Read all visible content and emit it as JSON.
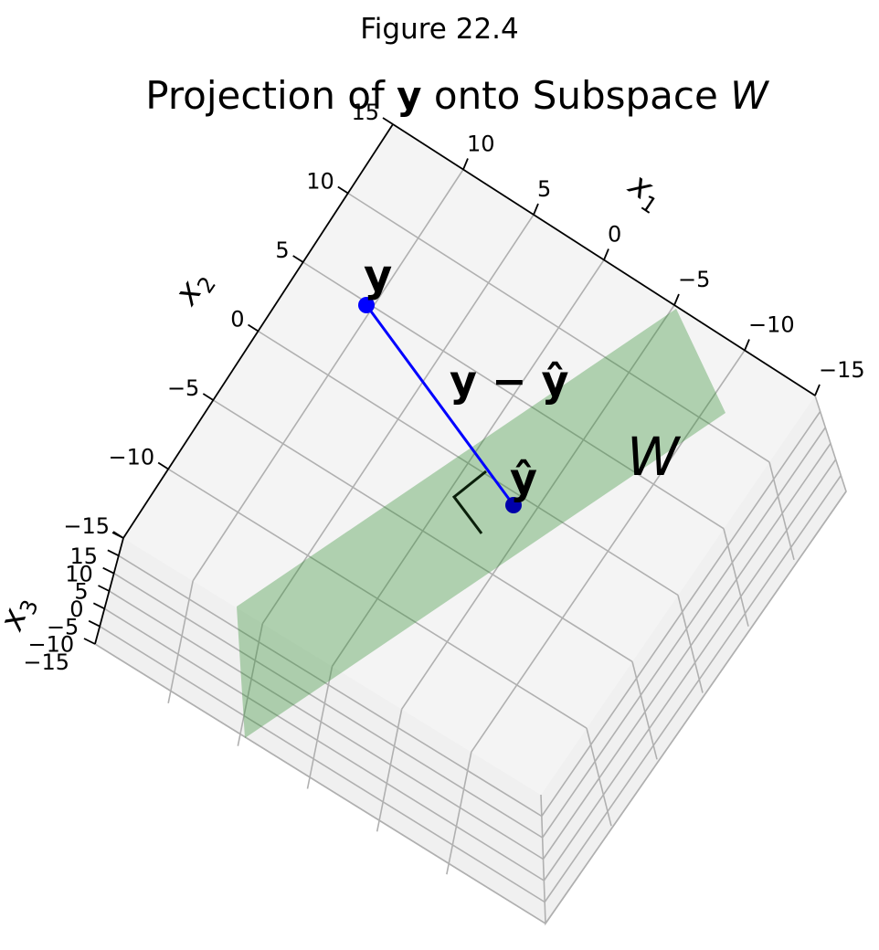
{
  "figure_label": "Figure 22.4",
  "title": {
    "prefix": "Projection of ",
    "vector": "y",
    "middle": " onto Subspace ",
    "subspace": "W"
  },
  "chart_data": {
    "type": "3d-projection",
    "axes": [
      {
        "name": "x1",
        "label_text": "x",
        "label_sub": "1",
        "range": [
          -15,
          15
        ],
        "ticks": [
          -15,
          -10,
          -5,
          0,
          5,
          10,
          15
        ]
      },
      {
        "name": "x2",
        "label_text": "x",
        "label_sub": "2",
        "range": [
          -15,
          15
        ],
        "ticks": [
          -15,
          -10,
          -5,
          0,
          5,
          10,
          15
        ]
      },
      {
        "name": "x3",
        "label_text": "x",
        "label_sub": "3",
        "range": [
          -15,
          15
        ],
        "ticks": [
          -15,
          -10,
          -5,
          0,
          5,
          10,
          15
        ]
      }
    ],
    "tick_labels": {
      "x1": [
        "10",
        "5",
        "0",
        "−5",
        "−10",
        "−15"
      ],
      "x2": [
        "15",
        "10",
        "5",
        "0",
        "−5",
        "−10",
        "−15"
      ],
      "x3": [
        "15",
        "10",
        "5",
        "0",
        "−5",
        "−10",
        "−15"
      ]
    },
    "grid": true,
    "view": "top-down oblique",
    "points": [
      {
        "name": "y",
        "label": "y",
        "color": "#0000ff"
      },
      {
        "name": "y_hat",
        "label": "ŷ",
        "color": "#0000aa"
      }
    ],
    "residual": {
      "label": "y − ŷ",
      "color": "#0000ff"
    },
    "plane": {
      "label": "W",
      "color": "#2e8b2e",
      "alpha": 0.35
    },
    "right_angle_marker": true
  }
}
